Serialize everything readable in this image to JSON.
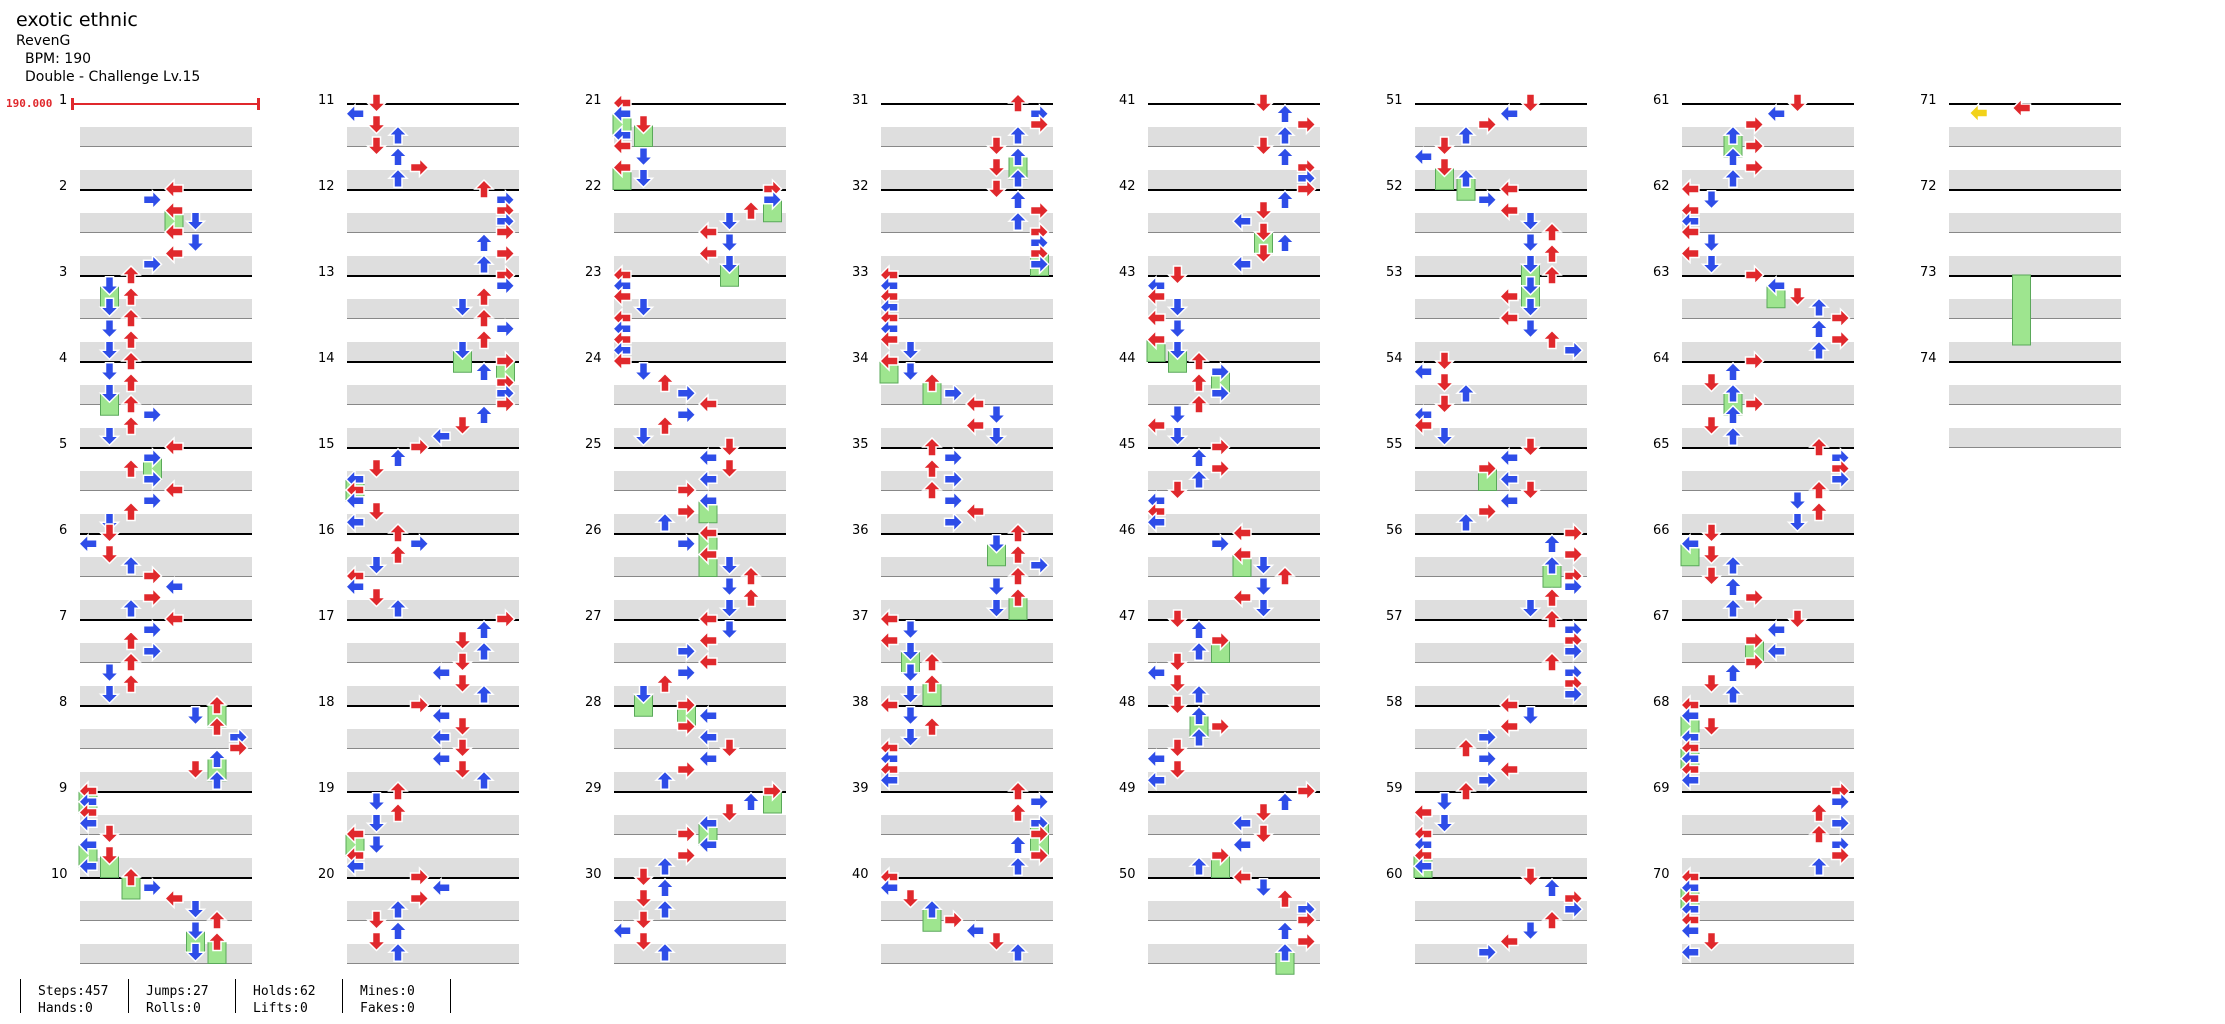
{
  "header": {
    "title": "exotic ethnic",
    "artist": "RevenG",
    "bpm": "BPM: 190",
    "difficulty": "Double - Challenge Lv.15"
  },
  "bpm_marker": "190.000",
  "measures": [
    "1",
    "2",
    "3",
    "4",
    "5",
    "6",
    "7",
    "8",
    "9",
    "10",
    "11",
    "12",
    "13",
    "14",
    "15",
    "16",
    "17",
    "18",
    "19",
    "20",
    "21",
    "22",
    "23",
    "24",
    "25",
    "26",
    "27",
    "28",
    "29",
    "30",
    "31",
    "32",
    "33",
    "34",
    "35",
    "36",
    "37",
    "38",
    "39",
    "40",
    "41",
    "42",
    "43",
    "44",
    "45",
    "46",
    "47",
    "48",
    "49",
    "50",
    "51",
    "52",
    "53",
    "54",
    "55",
    "56",
    "57",
    "58",
    "59",
    "60",
    "61",
    "62",
    "63",
    "64",
    "65",
    "66",
    "67",
    "68",
    "69",
    "70",
    "71",
    "72",
    "73",
    "74"
  ],
  "stats": {
    "steps": "Steps:457",
    "jumps": "Jumps:27",
    "holds": "Holds:62",
    "mines": "Mines:0",
    "hands": "Hands:0",
    "rolls": "Rolls:0",
    "lifts": "Lifts:0",
    "fakes": "Fakes:0"
  },
  "colors": {
    "quarter_note": "#e0282c",
    "eighth_note": "#2e4de8",
    "sixteenth_note": "#f2d21a",
    "hold_body": "#9ee58f",
    "band": "#dedede"
  },
  "icons": {
    "note": "arrow-icon",
    "hold": "hold-icon"
  }
}
